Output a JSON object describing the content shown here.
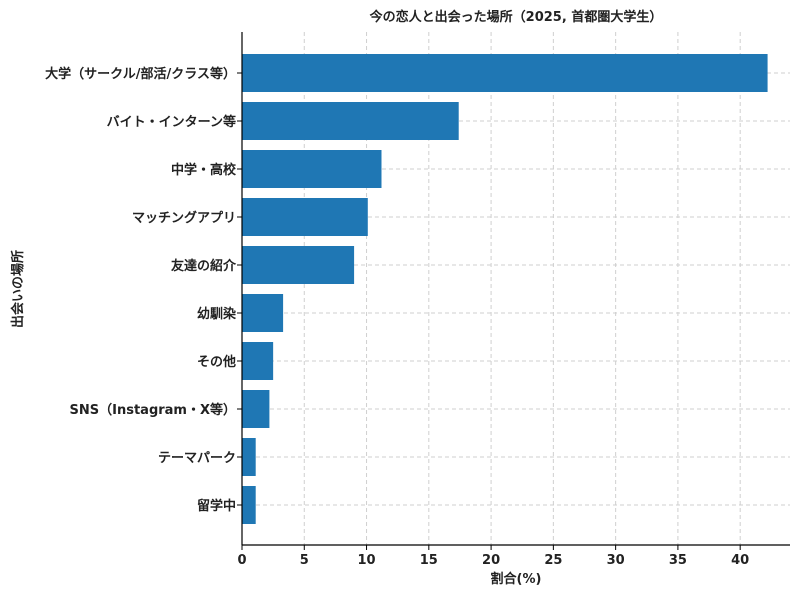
{
  "chart_data": {
    "type": "bar",
    "orientation": "horizontal",
    "title": "今の恋人と出会った場所（2025, 首都圏大学生）",
    "xlabel": "割合(%)",
    "ylabel": "出会いの場所",
    "categories": [
      "大学（サークル/部活/クラス等）",
      "バイト・インターン等",
      "中学・高校",
      "マッチングアプリ",
      "友達の紹介",
      "幼馴染",
      "その他",
      "SNS（Instagram・X等）",
      "テーマパーク",
      "留学中"
    ],
    "values": [
      42.2,
      17.4,
      11.2,
      10.1,
      9.0,
      3.3,
      2.5,
      2.2,
      1.1,
      1.1
    ],
    "xlim": [
      0,
      44
    ],
    "xticks": [
      0,
      5,
      10,
      15,
      20,
      25,
      30,
      35,
      40
    ],
    "grid": true,
    "bar_color": "#1f77b4"
  }
}
